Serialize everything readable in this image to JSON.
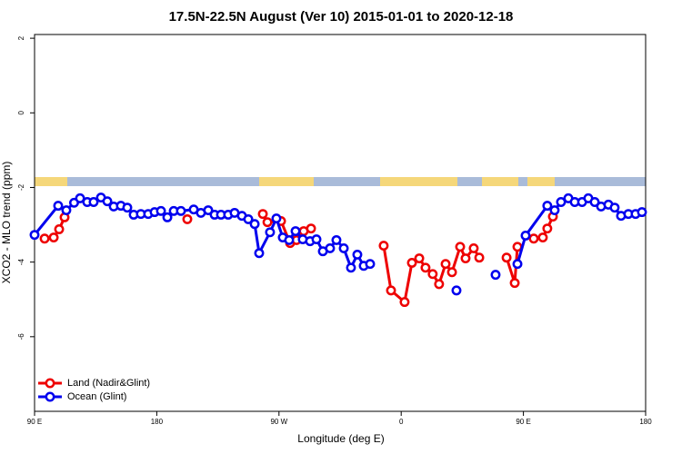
{
  "chart_data": {
    "type": "line",
    "title": "17.5N-22.5N August (Ver 10)   2015-01-01 to 2020-12-18",
    "x_label": "Longitude (deg E)",
    "y_label": "XCO2 - MLO trend (ppm)",
    "xlim": [
      90,
      540
    ],
    "xticks": [
      {
        "value": 90,
        "label": "90 E"
      },
      {
        "value": 180,
        "label": "180"
      },
      {
        "value": 270,
        "label": "90 W"
      },
      {
        "value": 360,
        "label": "0"
      },
      {
        "value": 450,
        "label": "90 E"
      },
      {
        "value": 540,
        "label": "180"
      }
    ],
    "ylim": [
      -8,
      2.1
    ],
    "yticks": [
      2,
      0,
      -2,
      -4,
      -6
    ],
    "legend": "bottom-left",
    "series": [
      {
        "name": "Land (Nadir&Glint)",
        "color": "#ee0000",
        "x": [
          97.4,
          104.1,
          108.1,
          112.1,
          null,
          202.5,
          null,
          258.1,
          261.5,
          271.5,
          278.2,
          282.9,
          288.2,
          293.6,
          null,
          347.1,
          352.5,
          362.5,
          367.9,
          373.3,
          377.9,
          383.2,
          387.9,
          392.7,
          397.4,
          403.4,
          407.4,
          413.4,
          417.5,
          null,
          437.6,
          443.6,
          445.6,
          null,
          457.6,
          464.3,
          467.6,
          471.7
        ],
        "values": [
          -3.37,
          -3.34,
          -3.12,
          -2.8,
          null,
          -2.85,
          null,
          -2.71,
          -2.93,
          -2.9,
          -3.49,
          -3.41,
          -3.17,
          -3.1,
          null,
          -3.56,
          -4.76,
          -5.07,
          -4.02,
          -3.9,
          -4.15,
          -4.32,
          -4.59,
          -4.05,
          -4.27,
          -3.59,
          -3.9,
          -3.63,
          -3.88,
          null,
          -3.88,
          -4.56,
          -3.59,
          null,
          -3.37,
          -3.34,
          -3.1,
          -2.78
        ]
      },
      {
        "name": "Ocean (Glint)",
        "color": "#0000ee",
        "x": [
          90,
          107.4,
          113.4,
          119.1,
          123.5,
          128.8,
          133.5,
          138.9,
          143.6,
          148.3,
          153.6,
          158.3,
          163,
          168.3,
          173.7,
          178.4,
          183.1,
          187.8,
          192.5,
          197.8,
          207.2,
          212.5,
          217.9,
          222.6,
          227.3,
          232.6,
          237.3,
          242.7,
          247.4,
          252.1,
          255.4,
          263.4,
          268.1,
          272.8,
          277.5,
          282.2,
          287.5,
          292.9,
          297.6,
          302.3,
          307.6,
          312.3,
          317.7,
          323,
          327.7,
          332.4,
          337.1,
          null,
          400.7,
          null,
          429.5,
          null,
          445.6,
          451.6,
          467.6,
          473,
          477.7,
          483.1,
          487.8,
          493.2,
          497.8,
          502.5,
          507.2,
          512.6,
          517.2,
          521.9,
          527.3,
          532.6,
          537.3
        ],
        "values": [
          -3.27,
          -2.49,
          -2.61,
          -2.41,
          -2.29,
          -2.39,
          -2.39,
          -2.27,
          -2.37,
          -2.51,
          -2.49,
          -2.54,
          -2.73,
          -2.71,
          -2.71,
          -2.66,
          -2.63,
          -2.8,
          -2.63,
          -2.63,
          -2.59,
          -2.68,
          -2.61,
          -2.73,
          -2.73,
          -2.73,
          -2.68,
          -2.76,
          -2.85,
          -2.98,
          -3.76,
          -3.2,
          -2.83,
          -3.34,
          -3.41,
          -3.17,
          -3.39,
          -3.44,
          -3.39,
          -3.71,
          -3.63,
          -3.41,
          -3.63,
          -4.15,
          -3.8,
          -4.1,
          -4.05,
          null,
          -4.76,
          null,
          -4.34,
          null,
          -4.05,
          -3.29,
          -2.49,
          -2.61,
          -2.39,
          -2.29,
          -2.39,
          -2.39,
          -2.29,
          -2.39,
          -2.51,
          -2.46,
          -2.54,
          -2.76,
          -2.71,
          -2.71,
          -2.66
        ]
      }
    ]
  }
}
